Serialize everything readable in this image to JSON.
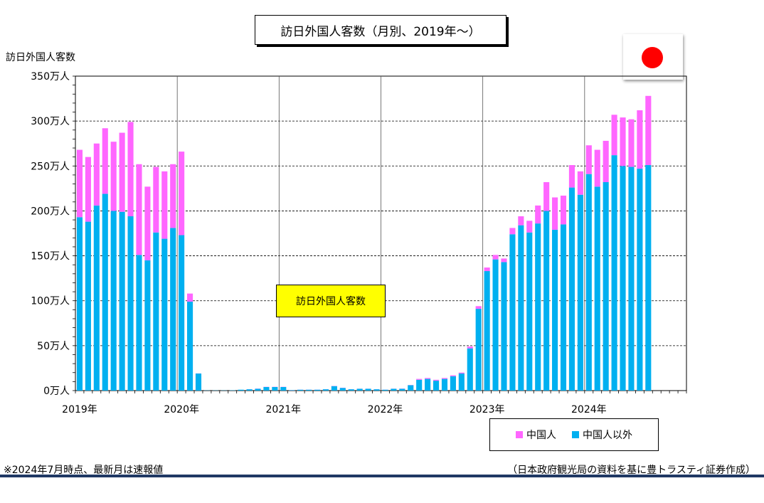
{
  "title": "訪日外国人客数（月別、2019年～）",
  "y_axis_title": "訪日外国人客数",
  "annotation": "訪日外国人客数",
  "footnote_left": "※2024年7月時点、最新月は速報値",
  "footnote_right": "（日本政府観光局の資料を基に豊トラスティ証券作成）",
  "flag_icon": "japan-flag-icon",
  "colors": {
    "china": "#ff66ff",
    "other": "#00b0f0",
    "annotation_bg": "#ffff00",
    "flag_red": "#ff0000",
    "bottom_rule": "#1f3864",
    "grid": "#000000"
  },
  "legend": {
    "items": [
      {
        "label": "中国人",
        "color": "#ff66ff"
      },
      {
        "label": "中国人以外",
        "color": "#00b0f0"
      }
    ]
  },
  "chart_data": {
    "type": "bar",
    "stacked": true,
    "unit": "万人",
    "y_ticks": [
      "0万人",
      "50万人",
      "100万人",
      "150万人",
      "200万人",
      "250万人",
      "300万人",
      "350万人"
    ],
    "ylim": [
      0,
      350
    ],
    "x_ticks": [
      "2019年",
      "2020年",
      "2021年",
      "2022年",
      "2023年",
      "2024年"
    ],
    "months_total": 72,
    "grid": "horizontal dashed, vertical solid at year boundaries",
    "legend_position": "bottom-right",
    "series": [
      {
        "name": "中国人以外",
        "values": [
          193,
          188,
          206,
          219,
          200,
          199,
          194,
          151,
          145,
          176,
          169,
          181,
          173,
          99,
          19,
          0.2,
          0.2,
          0.2,
          0.3,
          1,
          1.5,
          2,
          4,
          4,
          4,
          0.5,
          1,
          1,
          1,
          1.5,
          5,
          3,
          1.5,
          2,
          2,
          1.5,
          1,
          2,
          2,
          6,
          12,
          13,
          11,
          13,
          16,
          19,
          47,
          91,
          133,
          146,
          143,
          174,
          184,
          176,
          186,
          200,
          179,
          185,
          226,
          218,
          241,
          227,
          232,
          262,
          250,
          249,
          247,
          251
        ],
        "color": "#00b0f0"
      },
      {
        "name": "中国人",
        "values": [
          75,
          72,
          69,
          73,
          77,
          88,
          105,
          101,
          82,
          73,
          75,
          71,
          93,
          9,
          0.1,
          0,
          0,
          0,
          0,
          0,
          0.1,
          0.2,
          0.2,
          0.2,
          0.2,
          0.1,
          0.1,
          0.1,
          0.1,
          0.1,
          0.2,
          0.2,
          0.1,
          0.1,
          0.1,
          0.1,
          0.1,
          0.1,
          0.2,
          0.2,
          1,
          1,
          1,
          1,
          1,
          1,
          2,
          3,
          4,
          5,
          4,
          7,
          10,
          13,
          20,
          32,
          36,
          32,
          25,
          26,
          32,
          41,
          46,
          45,
          54,
          53,
          65,
          77
        ],
        "color": "#ff66ff"
      }
    ]
  }
}
